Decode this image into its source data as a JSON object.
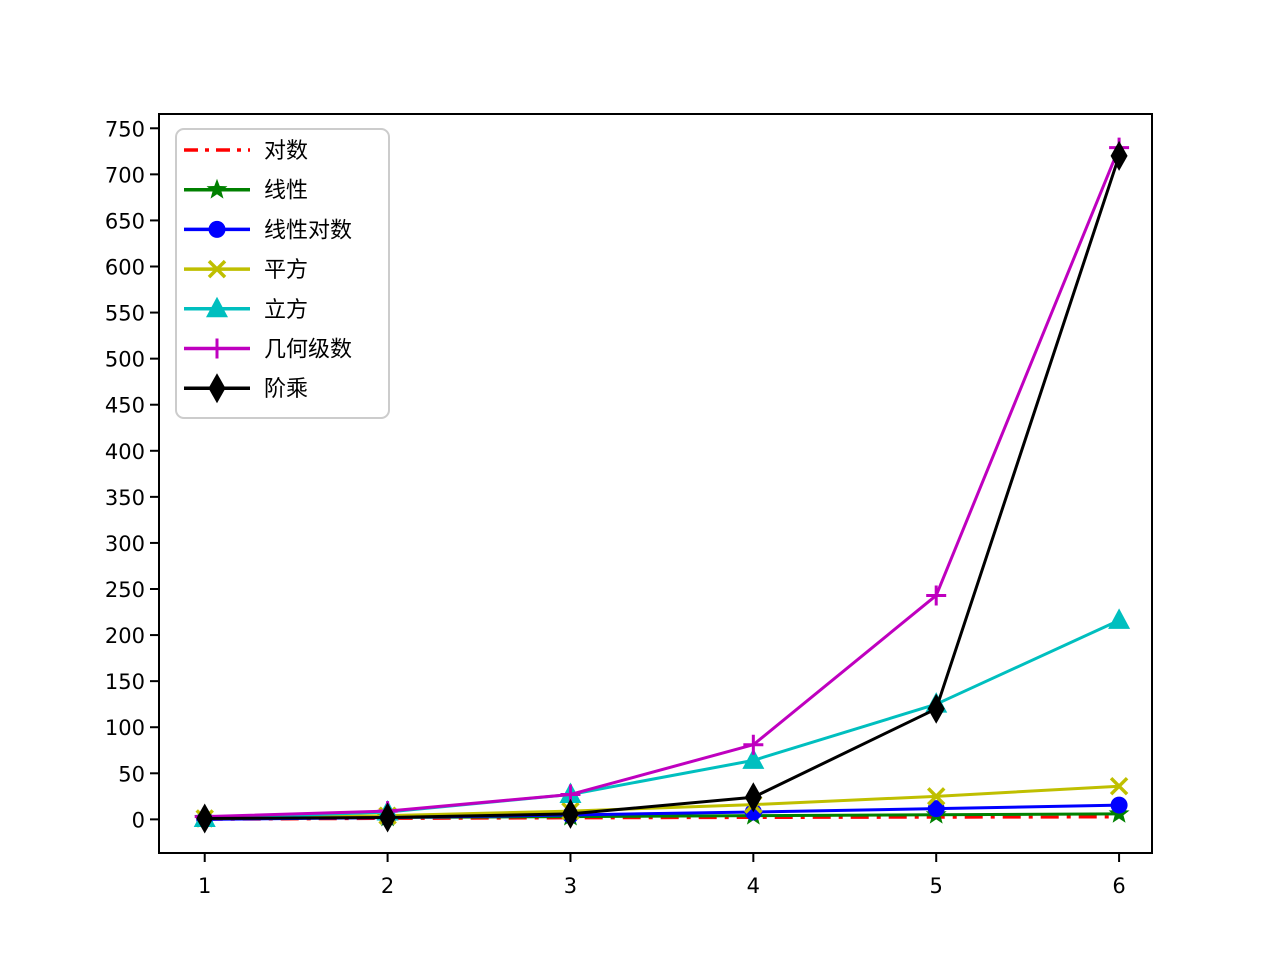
{
  "figure": {
    "background": "#ffffff",
    "axes_edge_color": "#000000",
    "legend_border_color": "#cccccc",
    "legend_background": "#ffffff"
  },
  "chart_data": {
    "type": "line",
    "title": "",
    "xlabel": "",
    "ylabel": "",
    "grid": false,
    "x": [
      1,
      2,
      3,
      4,
      5,
      6
    ],
    "series": [
      {
        "name": "对数",
        "color": "#ff0000",
        "linestyle": "dashdot",
        "marker": "none",
        "values": [
          0,
          1,
          1.58,
          2,
          2.32,
          2.58
        ]
      },
      {
        "name": "线性",
        "color": "#008000",
        "linestyle": "solid",
        "marker": "star",
        "values": [
          1,
          2,
          3,
          4,
          5,
          6
        ]
      },
      {
        "name": "线性对数",
        "color": "#0000ff",
        "linestyle": "solid",
        "marker": "circle",
        "values": [
          0,
          2,
          4.75,
          8,
          11.61,
          15.51
        ]
      },
      {
        "name": "平方",
        "color": "#bfbf00",
        "linestyle": "solid",
        "marker": "x",
        "values": [
          1,
          4,
          9,
          16,
          25,
          36
        ]
      },
      {
        "name": "立方",
        "color": "#00bfbf",
        "linestyle": "solid",
        "marker": "triangle-up",
        "values": [
          1,
          8,
          27,
          64,
          125,
          216
        ]
      },
      {
        "name": "几何级数",
        "color": "#bf00bf",
        "linestyle": "solid",
        "marker": "plus",
        "values": [
          3,
          9,
          27,
          81,
          243,
          729
        ]
      },
      {
        "name": "阶乘",
        "color": "#000000",
        "linestyle": "solid",
        "marker": "thin-diamond",
        "values": [
          1,
          2,
          6,
          24,
          120,
          720
        ]
      }
    ],
    "xticks": [
      "1",
      "2",
      "3",
      "4",
      "5",
      "6"
    ],
    "yticks": [
      0,
      50,
      100,
      150,
      200,
      250,
      300,
      350,
      400,
      450,
      500,
      550,
      600,
      650,
      700,
      750
    ],
    "xlim": [
      0.75,
      6.18
    ],
    "ylim": [
      -36.5,
      765.5
    ],
    "legend": {
      "position": "upper-left"
    }
  }
}
